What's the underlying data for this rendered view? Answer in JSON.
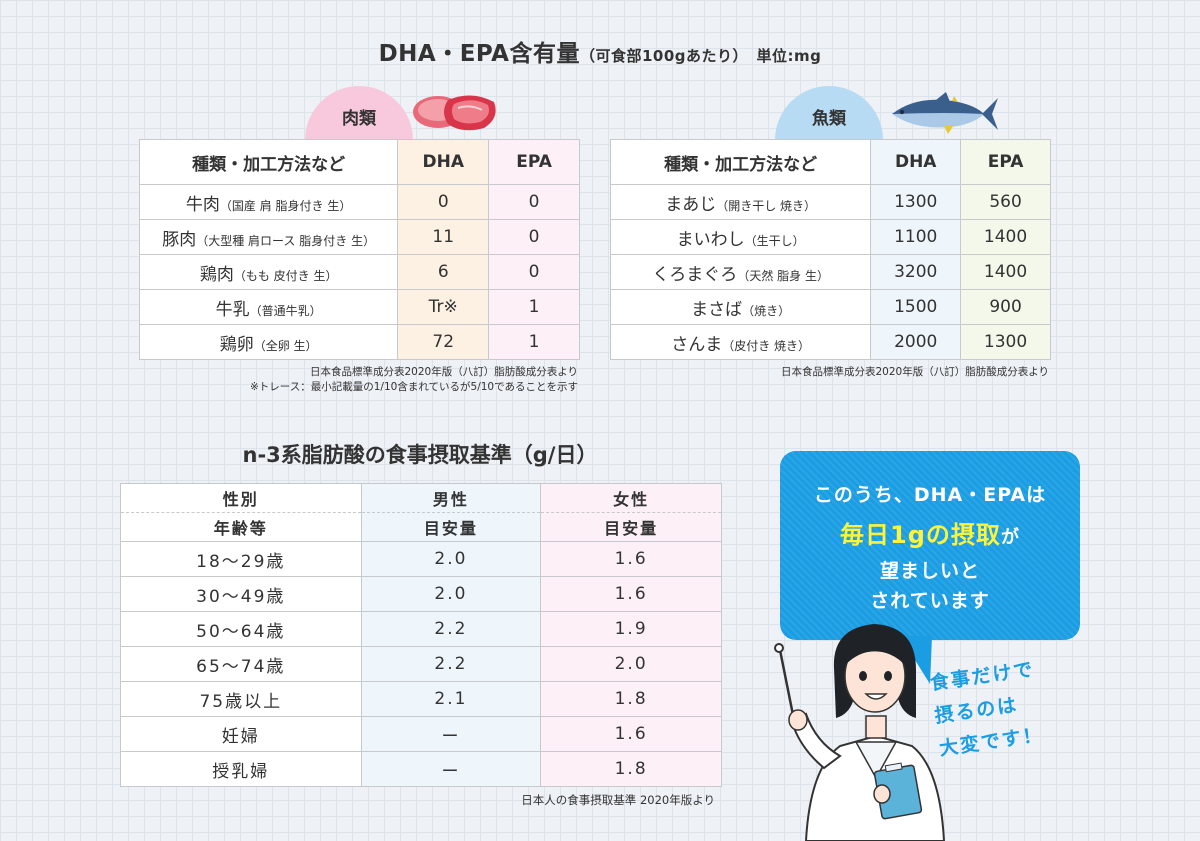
{
  "header": {
    "title": "DHA・EPA含有量",
    "subtitle": "（可食部100gあたり）",
    "unit": "単位:mg"
  },
  "meat": {
    "badge": "肉類",
    "columns": [
      "種類・加工方法など",
      "DHA",
      "EPA"
    ],
    "rows": [
      {
        "name": "牛肉",
        "note": "（国産 肩 脂身付き 生）",
        "dha": "0",
        "epa": "0"
      },
      {
        "name": "豚肉",
        "note": "（大型種 肩ロース 脂身付き 生）",
        "dha": "11",
        "epa": "0"
      },
      {
        "name": "鶏肉",
        "note": "（もも 皮付き 生）",
        "dha": "6",
        "epa": "0"
      },
      {
        "name": "牛乳",
        "note": "（普通牛乳）",
        "dha": "Tr※",
        "epa": "1"
      },
      {
        "name": "鶏卵",
        "note": "（全卵 生）",
        "dha": "72",
        "epa": "1"
      }
    ],
    "source": "日本食品標準成分表2020年版（八訂）脂肪酸成分表より",
    "footnote": "※トレース：最小記載量の1/10含まれているが5/10であることを示す"
  },
  "fish": {
    "badge": "魚類",
    "columns": [
      "種類・加工方法など",
      "DHA",
      "EPA"
    ],
    "rows": [
      {
        "name": "まあじ",
        "note": "（開き干し 焼き）",
        "dha": "1300",
        "epa": "560"
      },
      {
        "name": "まいわし",
        "note": "（生干し）",
        "dha": "1100",
        "epa": "1400"
      },
      {
        "name": "くろまぐろ",
        "note": "（天然 脂身 生）",
        "dha": "3200",
        "epa": "1400"
      },
      {
        "name": "まさば",
        "note": "（焼き）",
        "dha": "1500",
        "epa": "900"
      },
      {
        "name": "さんま",
        "note": "（皮付き 焼き）",
        "dha": "2000",
        "epa": "1300"
      }
    ],
    "source": "日本食品標準成分表2020年版（八訂）脂肪酸成分表より"
  },
  "intake": {
    "title": "n-3系脂肪酸の食事摂取基準（g/日）",
    "head": {
      "col1_top": "性別",
      "col1_bottom": "年齢等",
      "male": "男性",
      "female": "女性",
      "male_sub": "目安量",
      "female_sub": "目安量"
    },
    "rows": [
      {
        "age": "18〜29歳",
        "male": "2.0",
        "female": "1.6"
      },
      {
        "age": "30〜49歳",
        "male": "2.0",
        "female": "1.6"
      },
      {
        "age": "50〜64歳",
        "male": "2.2",
        "female": "1.9"
      },
      {
        "age": "65〜74歳",
        "male": "2.2",
        "female": "2.0"
      },
      {
        "age": "75歳以上",
        "male": "2.1",
        "female": "1.8"
      },
      {
        "age": "妊婦",
        "male": "ー",
        "female": "1.6"
      },
      {
        "age": "授乳婦",
        "male": "ー",
        "female": "1.8"
      }
    ],
    "source": "日本人の食事摂取基準 2020年版より"
  },
  "bubble": {
    "line1": "このうち、DHA・EPAは",
    "highlight": "毎日1gの摂取",
    "particle": "が",
    "line3": "望ましいと",
    "line4": "されています"
  },
  "side_note": [
    "食事だけで",
    "摂るのは",
    "大変です！"
  ],
  "colors": {
    "meat_badge": "#f8c9dc",
    "fish_badge": "#b7dbf3",
    "bubble": "#1a9de3",
    "highlight": "#fff23a"
  }
}
